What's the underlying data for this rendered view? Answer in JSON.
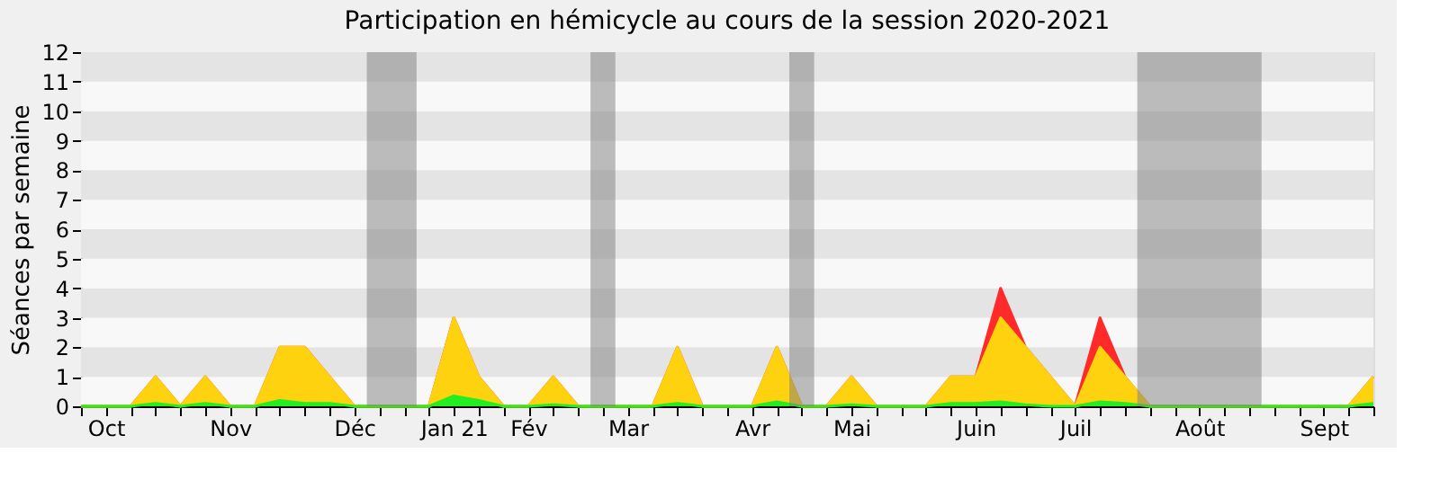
{
  "chart_data": {
    "type": "area",
    "title": "Participation en hémicycle au cours de la session 2020-2021",
    "ylabel": "Séances par semaine",
    "x": [
      "2020-09-28",
      "2020-10-05",
      "2020-10-12",
      "2020-10-19",
      "2020-10-26",
      "2020-11-02",
      "2020-11-09",
      "2020-11-16",
      "2020-11-23",
      "2020-11-30",
      "2020-12-07",
      "2020-12-14",
      "2020-12-21",
      "2020-12-28",
      "2021-01-04",
      "2021-01-11",
      "2021-01-18",
      "2021-01-25",
      "2021-02-01",
      "2021-02-08",
      "2021-02-15",
      "2021-02-22",
      "2021-03-01",
      "2021-03-08",
      "2021-03-15",
      "2021-03-22",
      "2021-03-29",
      "2021-04-05",
      "2021-04-12",
      "2021-04-19",
      "2021-04-26",
      "2021-05-03",
      "2021-05-10",
      "2021-05-17",
      "2021-05-24",
      "2021-05-31",
      "2021-06-07",
      "2021-06-14",
      "2021-06-21",
      "2021-06-28",
      "2021-07-05",
      "2021-07-12",
      "2021-07-19",
      "2021-07-26",
      "2021-08-02",
      "2021-08-09",
      "2021-08-16",
      "2021-08-23",
      "2021-08-30",
      "2021-09-06",
      "2021-09-13",
      "2021-09-20",
      "2021-09-27"
    ],
    "series": [
      {
        "color": "#ff2a2a",
        "values": [
          0,
          0,
          0,
          1,
          0,
          1,
          0,
          0,
          2,
          2,
          1,
          0,
          0,
          0,
          0,
          3,
          1,
          0,
          0,
          1,
          0,
          0,
          0,
          0,
          2,
          0,
          0,
          0,
          2,
          0,
          0,
          1,
          0,
          0,
          0,
          1,
          1,
          4,
          2,
          1,
          0,
          3,
          1,
          0,
          0,
          0,
          0,
          0,
          0,
          0,
          0,
          0,
          1
        ]
      },
      {
        "color": "#ffd20f",
        "values": [
          0,
          0,
          0,
          1,
          0,
          1,
          0,
          0,
          2,
          2,
          1,
          0,
          0,
          0,
          0,
          3,
          1,
          0,
          0,
          1,
          0,
          0,
          0,
          0,
          2,
          0,
          0,
          0,
          2,
          0,
          0,
          1,
          0,
          0,
          0,
          1,
          1,
          3,
          2,
          1,
          0,
          2,
          1,
          0,
          0,
          0,
          0,
          0,
          0,
          0,
          0,
          0,
          1
        ]
      },
      {
        "color": "#22ee22",
        "values": [
          0,
          0,
          0,
          0.1,
          0,
          0.1,
          0,
          0,
          0.2,
          0.1,
          0.1,
          0,
          0,
          0,
          0,
          0.35,
          0.2,
          0,
          0,
          0.05,
          0,
          0,
          0,
          0,
          0.1,
          0,
          0,
          0,
          0.15,
          0,
          0,
          0.05,
          0,
          0,
          0,
          0.1,
          0.1,
          0.15,
          0.05,
          0,
          0,
          0.15,
          0.1,
          0,
          0,
          0,
          0,
          0,
          0,
          0,
          0,
          0,
          0.1
        ]
      }
    ],
    "xlim": [
      "2020-09-28",
      "2021-09-27"
    ],
    "xticks": [
      {
        "value": "2020-09-28",
        "label": null
      },
      {
        "value": "2020-10-05",
        "label": "Oct"
      },
      {
        "value": "2020-10-12",
        "label": null
      },
      {
        "value": "2020-10-19",
        "label": null
      },
      {
        "value": "2020-10-26",
        "label": null
      },
      {
        "value": "2020-11-02",
        "label": null
      },
      {
        "value": "2020-11-09",
        "label": "Nov"
      },
      {
        "value": "2020-11-16",
        "label": null
      },
      {
        "value": "2020-11-23",
        "label": null
      },
      {
        "value": "2020-11-30",
        "label": null
      },
      {
        "value": "2020-12-07",
        "label": null
      },
      {
        "value": "2020-12-14",
        "label": "Déc"
      },
      {
        "value": "2020-12-21",
        "label": null
      },
      {
        "value": "2020-12-28",
        "label": null
      },
      {
        "value": "2021-01-04",
        "label": null
      },
      {
        "value": "2021-01-11",
        "label": "Jan 21"
      },
      {
        "value": "2021-01-18",
        "label": null
      },
      {
        "value": "2021-01-25",
        "label": null
      },
      {
        "value": "2021-02-01",
        "label": "Fév"
      },
      {
        "value": "2021-02-08",
        "label": null
      },
      {
        "value": "2021-02-15",
        "label": null
      },
      {
        "value": "2021-02-22",
        "label": null
      },
      {
        "value": "2021-03-01",
        "label": "Mar"
      },
      {
        "value": "2021-03-08",
        "label": null
      },
      {
        "value": "2021-03-15",
        "label": null
      },
      {
        "value": "2021-03-22",
        "label": null
      },
      {
        "value": "2021-03-29",
        "label": null
      },
      {
        "value": "2021-04-05",
        "label": "Avr"
      },
      {
        "value": "2021-04-12",
        "label": null
      },
      {
        "value": "2021-04-19",
        "label": null
      },
      {
        "value": "2021-04-26",
        "label": null
      },
      {
        "value": "2021-05-03",
        "label": "Mai"
      },
      {
        "value": "2021-05-10",
        "label": null
      },
      {
        "value": "2021-05-17",
        "label": null
      },
      {
        "value": "2021-05-24",
        "label": null
      },
      {
        "value": "2021-05-31",
        "label": null
      },
      {
        "value": "2021-06-07",
        "label": "Juin"
      },
      {
        "value": "2021-06-14",
        "label": null
      },
      {
        "value": "2021-06-21",
        "label": null
      },
      {
        "value": "2021-06-28",
        "label": null
      },
      {
        "value": "2021-07-05",
        "label": "Juil"
      },
      {
        "value": "2021-07-12",
        "label": null
      },
      {
        "value": "2021-07-19",
        "label": null
      },
      {
        "value": "2021-07-26",
        "label": null
      },
      {
        "value": "2021-08-02",
        "label": null
      },
      {
        "value": "2021-08-09",
        "label": "Août"
      },
      {
        "value": "2021-08-16",
        "label": null
      },
      {
        "value": "2021-08-23",
        "label": null
      },
      {
        "value": "2021-08-30",
        "label": null
      },
      {
        "value": "2021-09-06",
        "label": null
      },
      {
        "value": "2021-09-13",
        "label": "Sept"
      },
      {
        "value": "2021-09-20",
        "label": null
      },
      {
        "value": "2021-09-27",
        "label": null
      }
    ],
    "ylim": [
      0,
      12
    ],
    "yticks": [
      0,
      1,
      2,
      3,
      4,
      5,
      6,
      7,
      8,
      9,
      10,
      11,
      12
    ],
    "bands": [
      {
        "axis": "x",
        "from": "2020-12-17T12:00",
        "to": "2020-12-31T12:00",
        "color": "#7d7d7d"
      },
      {
        "axis": "x",
        "from": "2021-02-18T12:00",
        "to": "2021-02-25T12:00",
        "color": "#7d7d7d"
      },
      {
        "axis": "x",
        "from": "2021-04-15T12:00",
        "to": "2021-04-22T12:00",
        "color": "#7d7d7d"
      },
      {
        "axis": "x",
        "from": "2021-07-22T12:00",
        "to": "2021-08-26T12:00",
        "color": "#7d7d7d"
      }
    ]
  }
}
